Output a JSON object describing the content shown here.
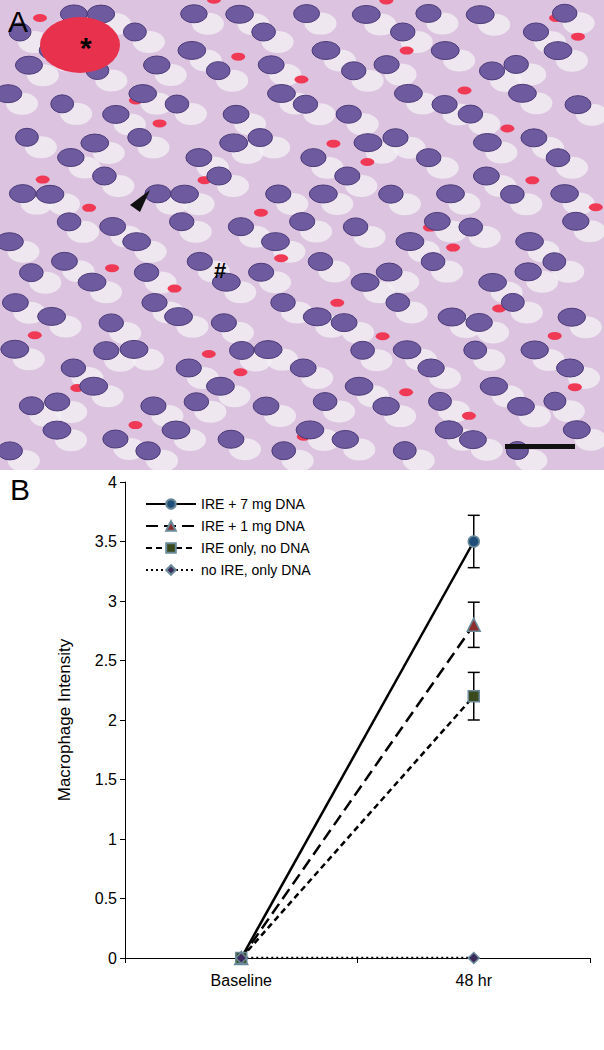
{
  "panel_a": {
    "label": "A",
    "annotations": [
      "*",
      "#"
    ]
  },
  "chart_data": {
    "type": "line",
    "panel_label": "B",
    "y_label": "Macrophage Intensity",
    "categories": [
      "Baseline",
      "48 hr"
    ],
    "ylim": [
      0,
      4
    ],
    "yticks": [
      0,
      0.5,
      1,
      1.5,
      2,
      2.5,
      3,
      3.5,
      4
    ],
    "grid": false,
    "legend": "top-left",
    "series": [
      {
        "name": "IRE + 7 mg DNA",
        "color": "#1f4e79",
        "marker": "circle",
        "line_style": "solid",
        "values": [
          0,
          3.5
        ],
        "errors": [
          0,
          0.22
        ]
      },
      {
        "name": "IRE + 1 mg DNA",
        "color": "#8b2e2e",
        "marker": "triangle",
        "line_style": "long_dash",
        "values": [
          0,
          2.8
        ],
        "errors": [
          0,
          0.19
        ]
      },
      {
        "name": "IRE only, no DNA",
        "color": "#3a4a1c",
        "marker": "square",
        "line_style": "dashed",
        "values": [
          0,
          2.2
        ],
        "errors": [
          0,
          0.2
        ]
      },
      {
        "name": "no IRE, only DNA",
        "color": "#3b2a5a",
        "marker": "diamond",
        "line_style": "dotted",
        "values": [
          0,
          0
        ],
        "errors": [
          0,
          0
        ]
      }
    ]
  }
}
